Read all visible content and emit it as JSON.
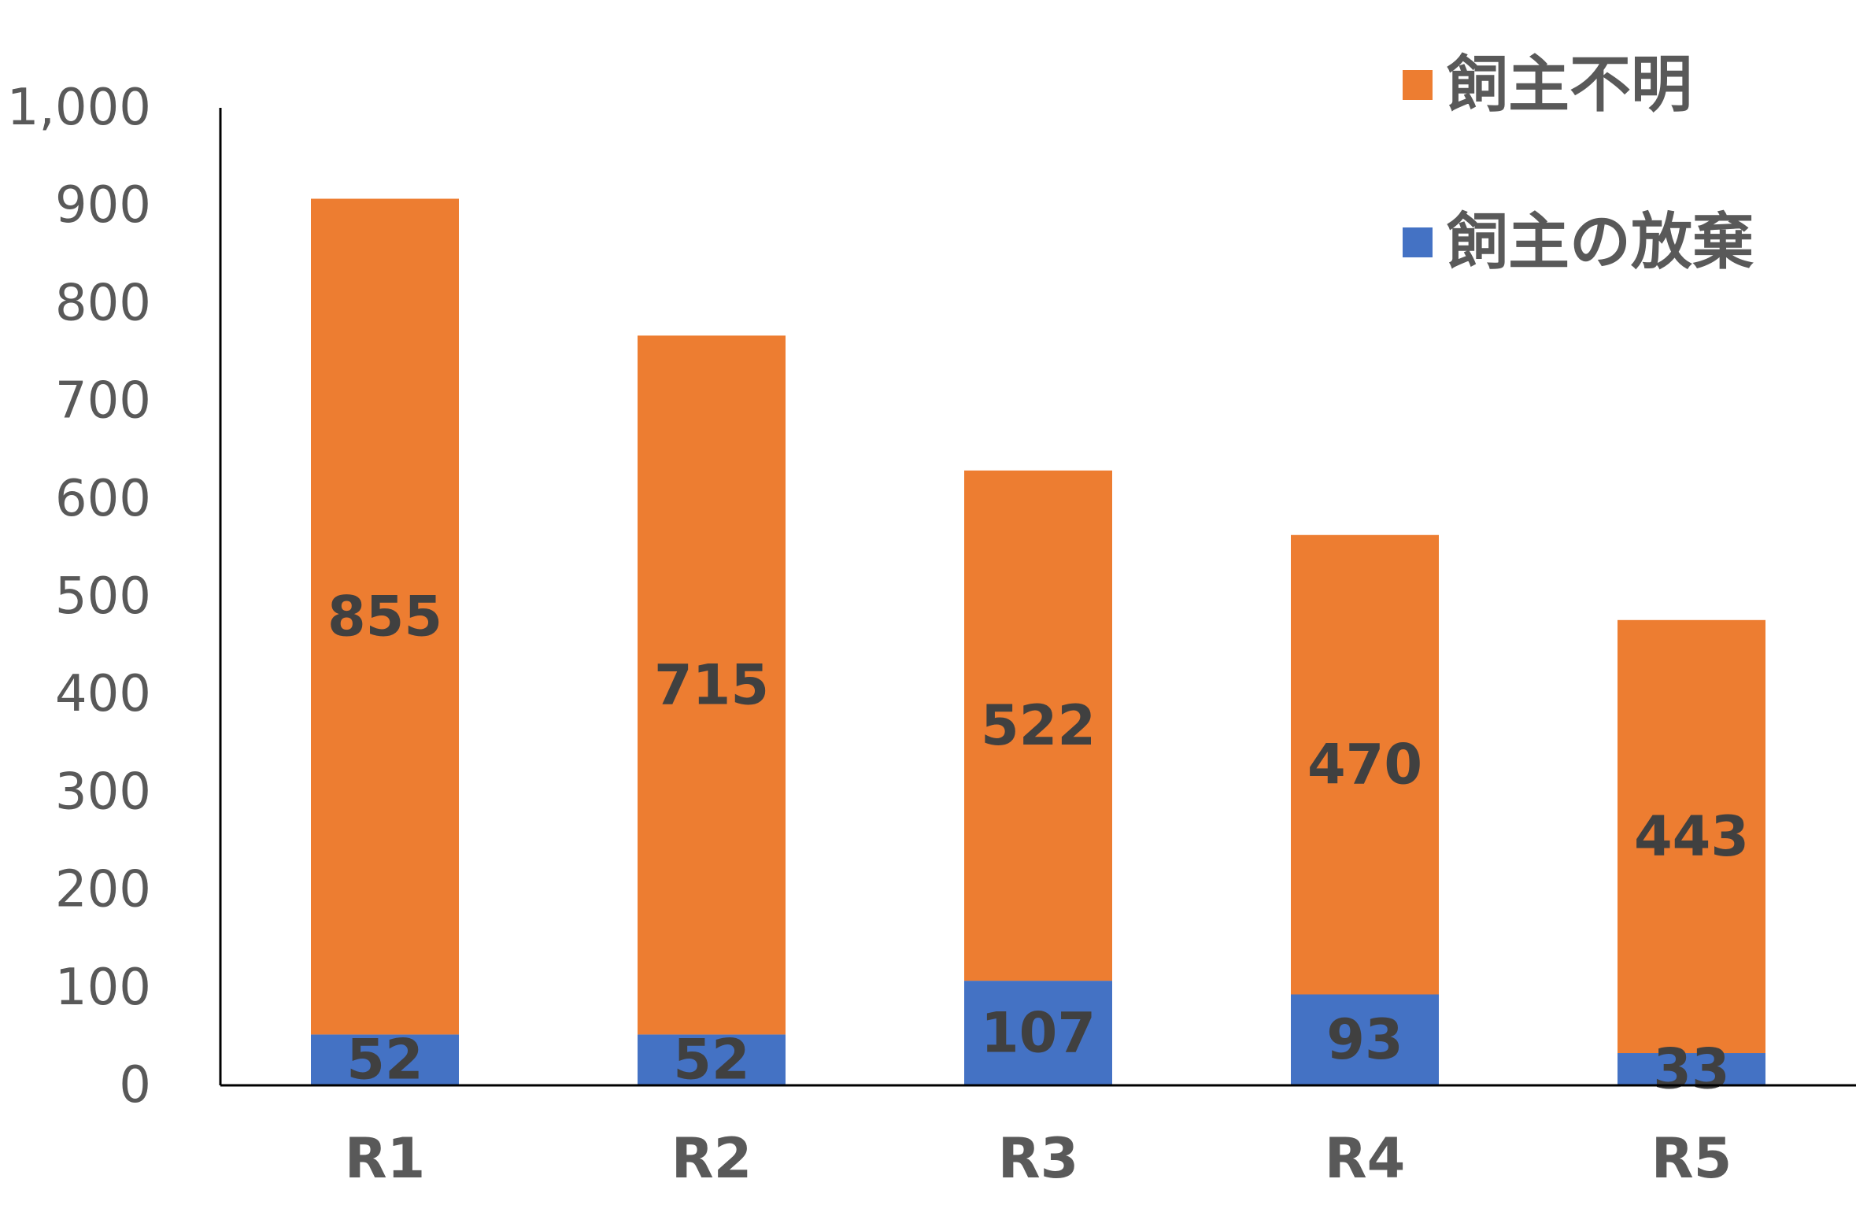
{
  "chart_data": {
    "type": "bar",
    "stacked": true,
    "categories": [
      "R1",
      "R2",
      "R3",
      "R4",
      "R5"
    ],
    "series": [
      {
        "name": "飼主の放棄",
        "values": [
          52,
          52,
          107,
          93,
          33
        ],
        "color": "#4472C4"
      },
      {
        "name": "飼主不明",
        "values": [
          855,
          715,
          522,
          470,
          443
        ],
        "color": "#ED7D31"
      }
    ],
    "ylim": [
      0,
      1000
    ],
    "yticks": [
      0,
      100,
      200,
      300,
      400,
      500,
      600,
      700,
      800,
      900,
      1000
    ],
    "ytick_labels": [
      "0",
      "100",
      "200",
      "300",
      "400",
      "500",
      "600",
      "700",
      "800",
      "900",
      "1,000"
    ],
    "legend_order": [
      "飼主不明",
      "飼主の放棄"
    ],
    "legend_position": "top-right",
    "grid": false,
    "data_labels": true,
    "title": "",
    "xlabel": "",
    "ylabel": ""
  }
}
